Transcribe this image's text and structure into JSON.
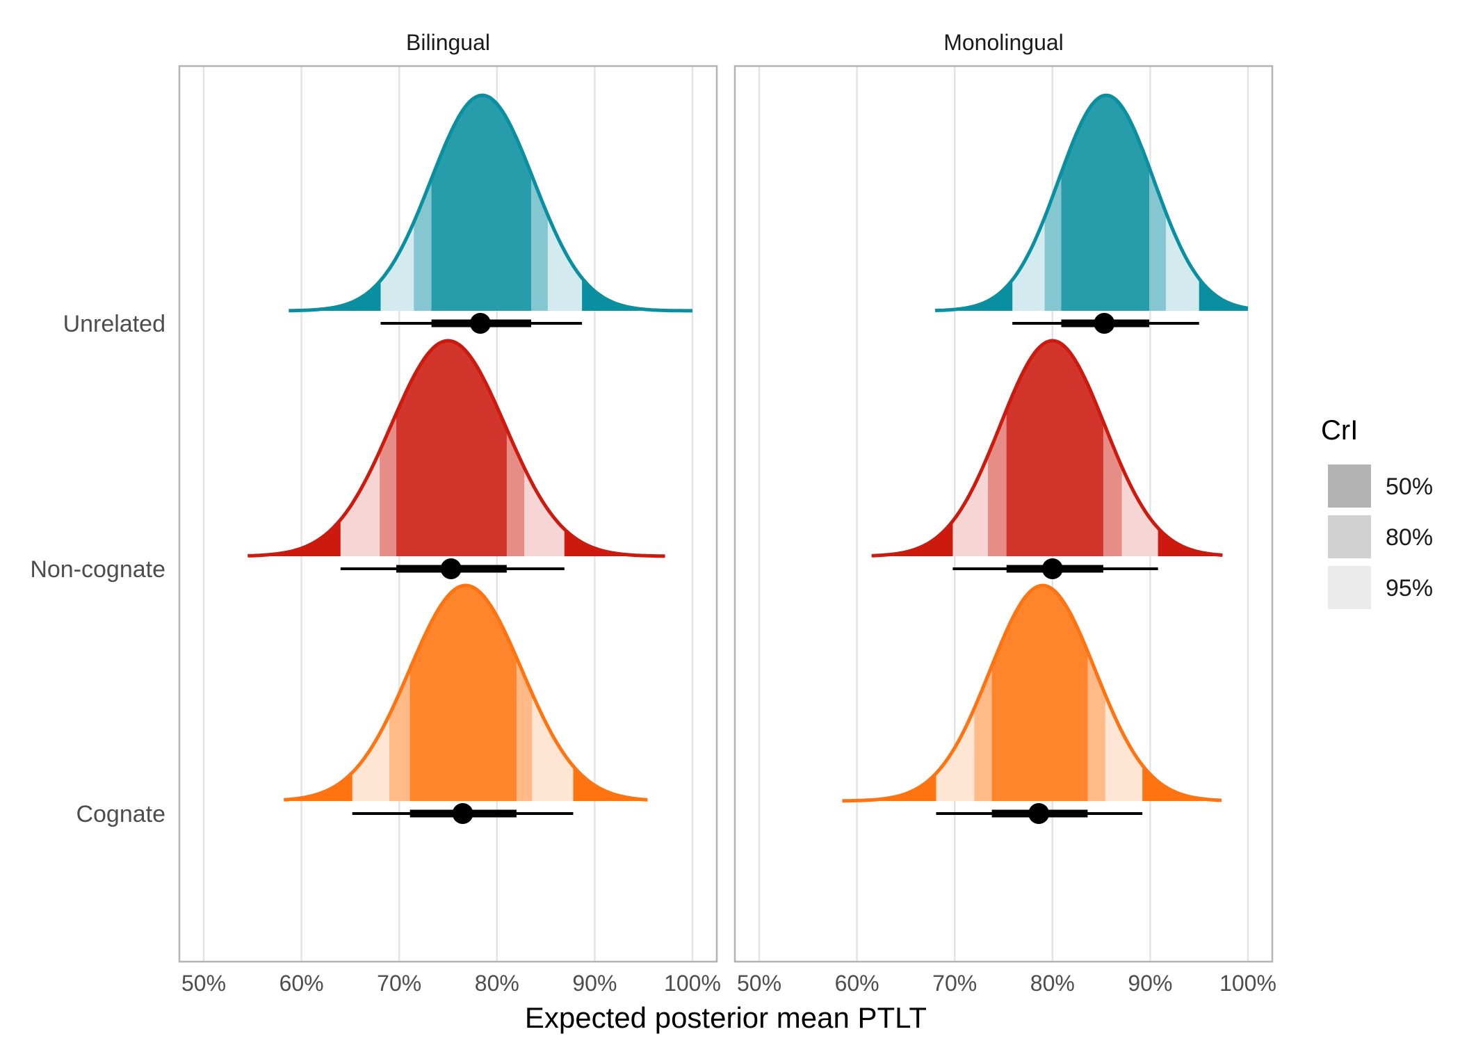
{
  "chart_data": {
    "type": "area",
    "subtype": "halfeye-density-with-interval",
    "xlabel": "Expected posterior mean PTLT",
    "ylabel": "",
    "xlim": [
      0.5,
      1.0
    ],
    "xticks": [
      0.5,
      0.6,
      0.7,
      0.8,
      0.9,
      1.0
    ],
    "xtick_labels": [
      "50%",
      "60%",
      "70%",
      "80%",
      "90%",
      "100%"
    ],
    "categories": [
      "Unrelated",
      "Non-cognate",
      "Cognate"
    ],
    "facets": [
      {
        "label": "Bilingual",
        "series": [
          {
            "category": "Unrelated",
            "color": "#0a8fa0",
            "range": [
              0.587,
              1.0
            ],
            "median": 0.783,
            "peak_at": 0.785,
            "ci50": [
              0.733,
              0.835
            ],
            "ci80": [
              0.715,
              0.852
            ],
            "ci95": [
              0.681,
              0.887
            ]
          },
          {
            "category": "Non-cognate",
            "color": "#cc1a0f",
            "range": [
              0.545,
              0.972
            ],
            "median": 0.753,
            "peak_at": 0.75,
            "ci50": [
              0.697,
              0.81
            ],
            "ci80": [
              0.68,
              0.828
            ],
            "ci95": [
              0.64,
              0.869
            ]
          },
          {
            "category": "Cognate",
            "color": "#ff7410",
            "range": [
              0.582,
              0.954
            ],
            "median": 0.765,
            "peak_at": 0.768,
            "ci50": [
              0.711,
              0.82
            ],
            "ci80": [
              0.69,
              0.836
            ],
            "ci95": [
              0.652,
              0.878
            ]
          }
        ]
      },
      {
        "label": "Monolingual",
        "series": [
          {
            "category": "Unrelated",
            "color": "#0a8fa0",
            "range": [
              0.68,
              1.0
            ],
            "median": 0.853,
            "peak_at": 0.855,
            "ci50": [
              0.809,
              0.899
            ],
            "ci80": [
              0.792,
              0.916
            ],
            "ci95": [
              0.759,
              0.95
            ]
          },
          {
            "category": "Non-cognate",
            "color": "#cc1a0f",
            "range": [
              0.615,
              0.974
            ],
            "median": 0.8,
            "peak_at": 0.8,
            "ci50": [
              0.753,
              0.852
            ],
            "ci80": [
              0.734,
              0.871
            ],
            "ci95": [
              0.698,
              0.908
            ]
          },
          {
            "category": "Cognate",
            "color": "#ff7410",
            "range": [
              0.585,
              0.973
            ],
            "median": 0.786,
            "peak_at": 0.79,
            "ci50": [
              0.738,
              0.836
            ],
            "ci80": [
              0.72,
              0.854
            ],
            "ci95": [
              0.681,
              0.892
            ]
          }
        ]
      }
    ],
    "legend": {
      "title": "CrI",
      "position": "right",
      "entries": [
        {
          "label": "50%",
          "color": "#b3b3b3"
        },
        {
          "label": "80%",
          "color": "#d1d1d1"
        },
        {
          "label": "95%",
          "color": "#ebebeb"
        }
      ]
    },
    "grid": true
  }
}
